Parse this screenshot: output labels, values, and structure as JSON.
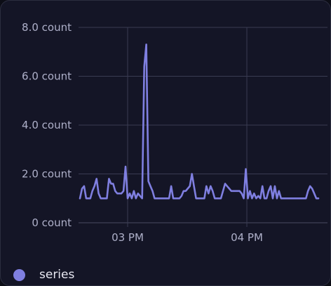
{
  "chart_data": {
    "type": "line",
    "y_unit": "count",
    "ylim": [
      0,
      8
    ],
    "y_ticks": [
      {
        "value": 0,
        "label": "0 count"
      },
      {
        "value": 2,
        "label": "2.0 count"
      },
      {
        "value": 4,
        "label": "4.0 count"
      },
      {
        "value": 6,
        "label": "6.0 count"
      },
      {
        "value": 8,
        "label": "8.0 count"
      }
    ],
    "x_ticks": [
      "03 PM",
      "04 PM"
    ],
    "grid": true,
    "legend_position": "bottom-left",
    "series": [
      {
        "name": "series",
        "color": "#7f7fe0",
        "values": [
          1.0,
          1.4,
          1.5,
          1.0,
          1.0,
          1.0,
          1.3,
          1.5,
          1.8,
          1.2,
          1.0,
          1.0,
          1.0,
          1.0,
          1.8,
          1.6,
          1.6,
          1.3,
          1.2,
          1.2,
          1.2,
          1.3,
          2.3,
          1.0,
          1.2,
          1.0,
          1.3,
          1.0,
          1.2,
          1.1,
          1.0,
          6.4,
          7.3,
          1.7,
          1.5,
          1.3,
          1.0,
          1.0,
          1.0,
          1.0,
          1.0,
          1.0,
          1.0,
          1.0,
          1.5,
          1.0,
          1.0,
          1.0,
          1.0,
          1.1,
          1.3,
          1.3,
          1.4,
          1.5,
          2.0,
          1.5,
          1.0,
          1.0,
          1.0,
          1.0,
          1.0,
          1.5,
          1.2,
          1.5,
          1.3,
          1.0,
          1.0,
          1.0,
          1.0,
          1.3,
          1.6,
          1.5,
          1.4,
          1.3,
          1.3,
          1.3,
          1.3,
          1.3,
          1.2,
          1.0,
          2.2,
          1.0,
          1.3,
          1.0,
          1.2,
          1.0,
          1.1,
          1.0,
          1.5,
          1.0,
          1.0,
          1.3,
          1.5,
          1.0,
          1.5,
          1.0,
          1.3,
          1.0,
          1.0,
          1.0,
          1.0,
          1.0,
          1.0,
          1.0,
          1.0,
          1.0,
          1.0,
          1.0,
          1.0,
          1.0,
          1.3,
          1.5,
          1.4,
          1.2,
          1.0,
          1.0
        ]
      }
    ]
  },
  "legend": {
    "items": [
      {
        "label": "series",
        "color": "#7f7fe0"
      }
    ]
  }
}
